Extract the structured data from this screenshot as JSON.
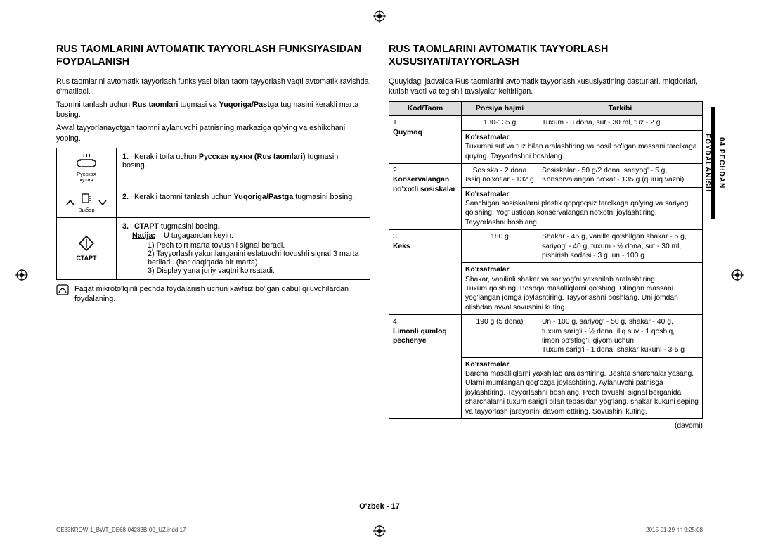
{
  "registration_marks": true,
  "left": {
    "heading": "RUS TAOMLARINI AVTOMATIK TAYYORLASH FUNKSIYASIDAN FOYDALANISH",
    "p1": "Rus taomlarini avtomatik tayyorlash funksiyasi bilan taom tayyorlash vaqti avtomatik ravishda o'rnatiladi.",
    "p2_pre": "Taomni tanlash uchun ",
    "p2_b1": "Rus taomlari",
    "p2_mid": " tugmasi va ",
    "p2_b2": "Yuqoriga/Pastga",
    "p2_post": " tugmasini kerakli marta bosing.",
    "p3": "Avval tayyorlanayotgan taomni aylanuvchi patnisning markaziga qo'ying va eshikchani yoping.",
    "step1_icon_label": "Русская\nкухня",
    "step1_num": "1.",
    "step1_pre": "Kerakli toifa uchun ",
    "step1_b": "Русская кухня (Rus taomlari)",
    "step1_post": " tugmasini bosing.",
    "step2_icon_label": "Выбор",
    "step2_num": "2.",
    "step2_pre": "Kerakli taomni tanlash uchun ",
    "step2_b": "Yuqoriga/Pastga",
    "step2_post": " tugmasini bosing.",
    "step3_icon_label": "СТАРТ",
    "step3_num": "3.",
    "step3_b": "СТАРТ",
    "step3_post_b": " tugmasini bosing",
    "step3_dot": ".",
    "step3_natija_label": "Natija:",
    "step3_natija_text": "U tugagandan keyin:",
    "step3_li1": "1)   Pech to'rt marta tovushli signal beradi.",
    "step3_li2": "2)   Tayyorlash yakunlanganini eslatuvchi tovushli signal 3 marta beriladi. (har daqiqada bir marta)",
    "step3_li3": "3)   Displey yana joriy vaqtni ko'rsatadi.",
    "note": "Faqat mikroto'lqinli pechda foydalanish uchun xavfsiz bo'lgan qabul qiluvchilardan foydalaning."
  },
  "right": {
    "heading": "RUS TAOMLARINI AVTOMATIK TAYYORLASH XUSUSIYATI/TAYYORLASH",
    "intro": "Quuyidagi jadvalda Rus taomlarini avtomatik tayyorlash xususiyatining dasturlari, miqdorlari, kutish vaqti va tegishli tavsiyalar keltirilgan.",
    "th1": "Kod/Taom",
    "th2": "Porsiya hajmi",
    "th3": "Tarkibi",
    "tips_label": "Ko'rsatmalar",
    "rows": [
      {
        "code": "1",
        "name": "Quymoq",
        "portion": "130-135 g",
        "ingredients": "Tuxum - 3 dona, sut - 30 ml, tuz - 2 g",
        "tips": "Tuxumni sut va tuz bilan aralashtiring va hosil bo'lgan massani tarelkaga quying. Tayyorlashni boshlang."
      },
      {
        "code": "2",
        "name": "Konservalangan no'xotli sosiskalar",
        "portion": "Sosiska - 2 dona\nIssiq no'xotlar - 132 g",
        "ingredients": "Sosiskalar - 50 g/2 dona, sariyog' - 5 g,\nKonservalangan no'xat - 135 g (quruq vazni)",
        "tips": "Sanchigan sosiskalarni plastik qopqoqsiz tarelkaga qo'ying va sariyog' qo'shing. Yog' ustidan konservalangan no'xotni joylashtiring. Tayyorlashni boshlang."
      },
      {
        "code": "3",
        "name": "Keks",
        "portion": "180 g",
        "ingredients": "Shakar - 45 g, vanilla qo'shilgan shakar - 5 g,\nsariyog' - 40 g, tuxum - ½ dona, sut - 30 ml,\npishirish sodasi - 3 g, un - 100 g",
        "tips": "Shakar, vanilinli shakar va sariyog'ni yaxshilab aralashtiring.\nTuxum qo'shing. Boshqa masalliqlarni qo'shing. Olingan massani yog'langan jomga joylashtiring. Tayyorlashni boshlang. Uni jomdan olishdan avval sovushini kuting."
      },
      {
        "code": "4",
        "name": "Limonli qumloq pechenye",
        "portion": "190 g (5 dona)",
        "ingredients": "Un - 100 g, sariyog' - 50 g, shakar - 40 g,\ntuxum sarig'i - ½ dona, iliq suv - 1 qoshiq,\nlimon po'stlog'i, qiyom uchun:\nTuxum sarig'i - 1 dona, shakar kukuni - 3-5 g",
        "tips": "Barcha masalliqlarni yaxshilab aralashtiring. Beshta sharchalar yasang. Ularni mumlangan qog'ozga joylashtiring. Aylanuvchi patnisga joylashtiring. Tayyorlashni boshlang. Pech tovushli signal berganida sharchalarni tuxum sarig'i bilan tepasidan yog'lang, shakar kukuni seping va tayyorlash jarayonini davom ettiring. Sovushini kuting."
      }
    ],
    "continued": "(davomi)"
  },
  "side_tab": "04  PECHDAN FOYDALANISH",
  "footer_page": "O'zbek - 17",
  "imprint_left": "GE83KRQW-1_BWT_DE68-04283B-00_UZ.indd   17",
  "imprint_right": "2015-01-29   ▯▯ 9:25:08"
}
